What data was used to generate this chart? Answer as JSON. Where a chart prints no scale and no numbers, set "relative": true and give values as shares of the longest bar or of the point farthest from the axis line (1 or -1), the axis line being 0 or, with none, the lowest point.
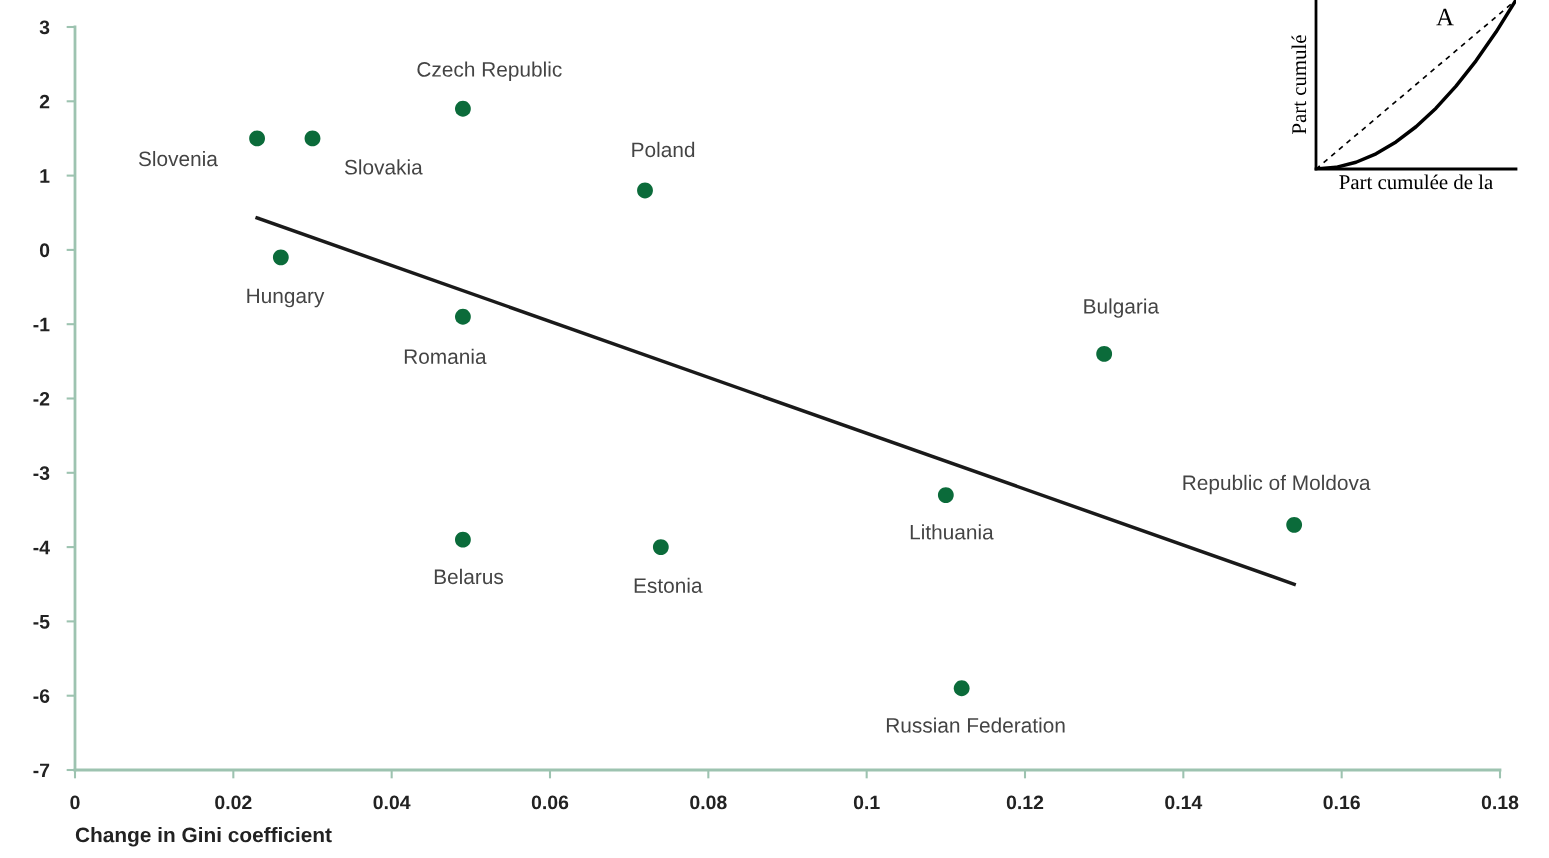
{
  "chart_data": [
    {
      "type": "scatter",
      "xlabel": "Change in Gini coefficient",
      "xlim": [
        0,
        0.18
      ],
      "xticks": [
        0,
        0.02,
        0.04,
        0.06,
        0.08,
        0.1,
        0.12,
        0.14,
        0.16,
        0.18
      ],
      "ylim": [
        -7,
        3
      ],
      "yticks": [
        -7,
        -6,
        -5,
        -4,
        -3,
        -2,
        -1,
        0,
        1,
        2,
        3
      ],
      "grid": false,
      "legend": false,
      "series": [
        {
          "type": "scatter",
          "marker": "circle",
          "color": "#0b6b3a",
          "x": [
            0.023,
            0.03,
            0.049,
            0.072,
            0.026,
            0.049,
            0.13,
            0.11,
            0.154,
            0.049,
            0.074,
            0.112
          ],
          "values": [
            1.5,
            1.5,
            1.9,
            0.8,
            -0.1,
            -0.9,
            -1.4,
            -3.3,
            -3.7,
            -3.9,
            -4.0,
            -5.9
          ]
        },
        {
          "type": "line",
          "color": "#1a1a1a",
          "line_style": "solid",
          "x": [
            0.023,
            0.154
          ],
          "values": [
            0.43,
            -4.5
          ]
        }
      ],
      "annotations": [
        {
          "text": "Slovenia",
          "x": 0.023,
          "y": 1.5
        },
        {
          "text": "Slovakia",
          "x": 0.03,
          "y": 1.5
        },
        {
          "text": "Czech Republic",
          "x": 0.049,
          "y": 1.9
        },
        {
          "text": "Poland",
          "x": 0.072,
          "y": 0.8
        },
        {
          "text": "Hungary",
          "x": 0.026,
          "y": -0.1
        },
        {
          "text": "Romania",
          "x": 0.049,
          "y": -0.9
        },
        {
          "text": "Bulgaria",
          "x": 0.13,
          "y": -1.4
        },
        {
          "text": "Lithuania",
          "x": 0.11,
          "y": -3.3
        },
        {
          "text": "Republic of Moldova",
          "x": 0.154,
          "y": -3.7
        },
        {
          "text": "Belarus",
          "x": 0.049,
          "y": -3.9
        },
        {
          "text": "Estonia",
          "x": 0.074,
          "y": -4.0
        },
        {
          "text": "Russian Federation",
          "x": 0.112,
          "y": -5.9
        }
      ]
    },
    {
      "type": "line",
      "relative": true,
      "xlabel": "Part cumulée de la",
      "ylabel": "Part cumulé",
      "grid": false,
      "legend": false,
      "categories": [
        null,
        null,
        null,
        null,
        null,
        null,
        null,
        null,
        null,
        null,
        null
      ],
      "series": [
        {
          "color": "#000000",
          "line_style": "dashed",
          "values": [
            0,
            0.1,
            0.2,
            0.3,
            0.4,
            0.5,
            0.6,
            0.7,
            0.8,
            0.9,
            1
          ]
        },
        {
          "color": "#000000",
          "line_style": "solid",
          "values": [
            0,
            0.01,
            0.04,
            0.09,
            0.16,
            0.25,
            0.36,
            0.49,
            0.64,
            0.81,
            1
          ]
        }
      ],
      "annotations": [
        "A"
      ]
    }
  ]
}
